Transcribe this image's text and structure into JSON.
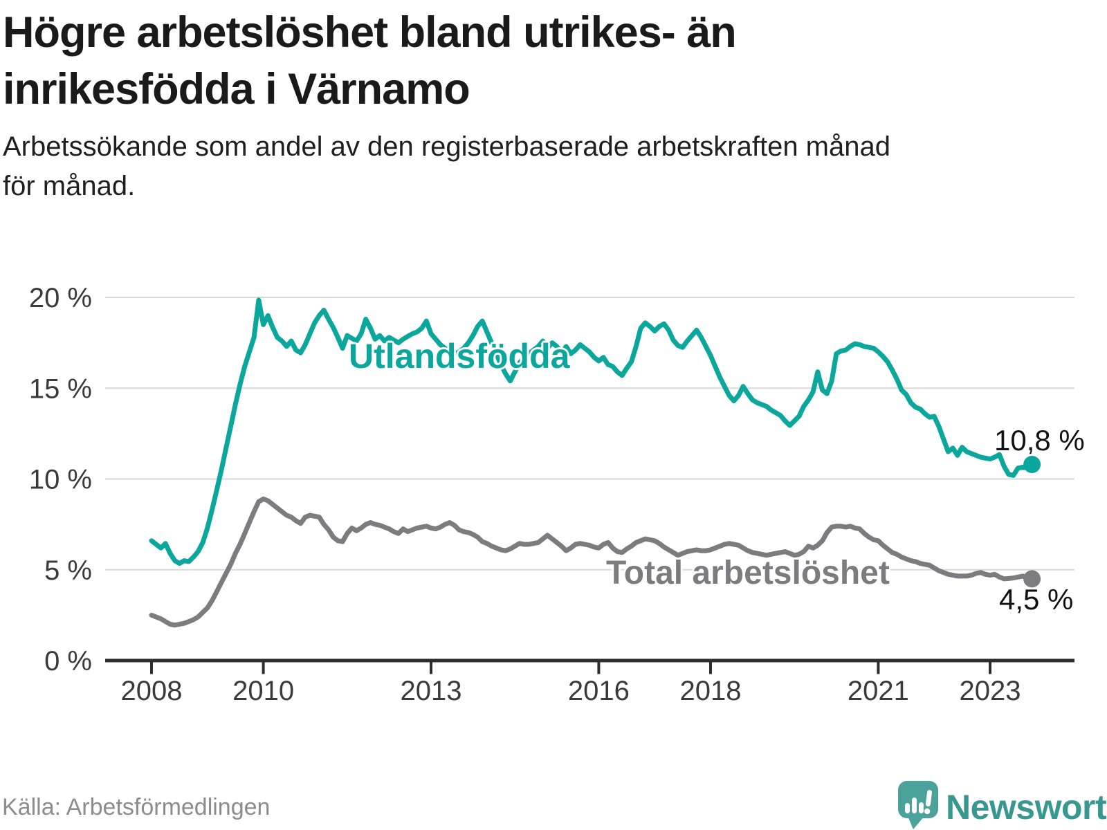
{
  "title": {
    "line1": "Högre arbetslöshet bland utrikes- än",
    "line2": "inrikesfödda i Värnamo"
  },
  "subtitle": {
    "line1": "Arbetssökande som andel av den registerbaserade arbetskraften månad",
    "line2": "för månad."
  },
  "source": "Källa: Arbetsförmedlingen",
  "brand": {
    "name": "Newsworthy",
    "icon": "newsworthy-pin-bar-chart-icon",
    "color": "#38988f",
    "icon_color": "#4aa29b"
  },
  "chart_data": {
    "type": "line",
    "title": "Högre arbetslöshet bland utrikes- än inrikesfödda i Värnamo",
    "subtitle": "Arbetssökande som andel av den registerbaserade arbetskraften månad för månad.",
    "xlabel": "",
    "ylabel": "",
    "ylim": [
      0,
      20
    ],
    "grid": true,
    "legend_position": "inline-labels",
    "x_unit": "month",
    "x_start_year": 2008,
    "x_end": "2023-10",
    "x_axis_ticks": [
      2008,
      2010,
      2013,
      2016,
      2018,
      2021,
      2023
    ],
    "y_axis_ticks": [
      {
        "value": 0,
        "label": "0 %"
      },
      {
        "value": 5,
        "label": "5 %"
      },
      {
        "value": 10,
        "label": "10 %"
      },
      {
        "value": 15,
        "label": "15 %"
      },
      {
        "value": 20,
        "label": "20 %"
      }
    ],
    "style": {
      "grid_color": "#d8d8d8",
      "axis_color": "#2e2e2e",
      "tick_label_color": "#3a3a3a"
    },
    "series": [
      {
        "name": "Total arbetslöshet",
        "color": "#7c7c80",
        "end_value": 4.5,
        "end_label": "4,5 %",
        "values": [
          2.5,
          2.4,
          2.3,
          2.15,
          2.0,
          1.95,
          2.0,
          2.05,
          2.15,
          2.25,
          2.4,
          2.65,
          2.9,
          3.3,
          3.8,
          4.3,
          4.8,
          5.3,
          5.9,
          6.4,
          7.0,
          7.6,
          8.2,
          8.75,
          8.9,
          8.8,
          8.6,
          8.4,
          8.2,
          8.0,
          7.9,
          7.7,
          7.55,
          7.9,
          8.0,
          7.95,
          7.9,
          7.5,
          7.2,
          6.8,
          6.6,
          6.55,
          7.0,
          7.3,
          7.15,
          7.3,
          7.5,
          7.6,
          7.5,
          7.45,
          7.35,
          7.25,
          7.1,
          7.0,
          7.25,
          7.1,
          7.2,
          7.3,
          7.35,
          7.4,
          7.3,
          7.25,
          7.35,
          7.5,
          7.6,
          7.45,
          7.2,
          7.1,
          7.05,
          6.95,
          6.8,
          6.55,
          6.45,
          6.3,
          6.2,
          6.1,
          6.05,
          6.15,
          6.3,
          6.45,
          6.4,
          6.4,
          6.45,
          6.5,
          6.7,
          6.9,
          6.7,
          6.5,
          6.3,
          6.05,
          6.2,
          6.4,
          6.45,
          6.4,
          6.35,
          6.25,
          6.2,
          6.4,
          6.5,
          6.2,
          6.0,
          5.95,
          6.15,
          6.3,
          6.5,
          6.6,
          6.7,
          6.65,
          6.6,
          6.45,
          6.25,
          6.1,
          5.95,
          5.8,
          5.9,
          6.0,
          6.05,
          6.1,
          6.05,
          6.05,
          6.1,
          6.2,
          6.3,
          6.4,
          6.45,
          6.4,
          6.35,
          6.2,
          6.05,
          5.95,
          5.9,
          5.85,
          5.8,
          5.85,
          5.9,
          5.95,
          6.0,
          5.9,
          5.8,
          5.85,
          6.0,
          6.3,
          6.2,
          6.35,
          6.6,
          7.05,
          7.35,
          7.4,
          7.4,
          7.35,
          7.4,
          7.3,
          7.25,
          7.0,
          6.8,
          6.65,
          6.6,
          6.35,
          6.15,
          5.95,
          5.85,
          5.7,
          5.6,
          5.5,
          5.45,
          5.35,
          5.3,
          5.25,
          5.1,
          4.95,
          4.85,
          4.75,
          4.7,
          4.65,
          4.65,
          4.65,
          4.7,
          4.8,
          4.85,
          4.75,
          4.7,
          4.75,
          4.6,
          4.5,
          4.52,
          4.55,
          4.6,
          4.65,
          4.55,
          4.5
        ]
      },
      {
        "name": "Utlandsfödda",
        "color": "#0ca79c",
        "end_value": 10.8,
        "end_label": "10,8 %",
        "values": [
          6.6,
          6.4,
          6.2,
          6.45,
          5.9,
          5.5,
          5.35,
          5.5,
          5.45,
          5.7,
          6.0,
          6.5,
          7.3,
          8.3,
          9.4,
          10.5,
          11.7,
          12.9,
          14.1,
          15.2,
          16.2,
          17.0,
          17.8,
          19.85,
          18.5,
          19.0,
          18.35,
          17.8,
          17.6,
          17.3,
          17.6,
          17.1,
          16.95,
          17.4,
          18.0,
          18.6,
          19.0,
          19.3,
          18.8,
          18.35,
          17.8,
          17.2,
          17.9,
          17.75,
          17.6,
          18.0,
          18.8,
          18.3,
          17.7,
          17.9,
          17.6,
          17.8,
          17.65,
          17.5,
          17.7,
          17.85,
          18.0,
          18.1,
          18.3,
          18.7,
          18.0,
          17.7,
          17.4,
          17.2,
          17.0,
          16.9,
          17.0,
          17.2,
          17.5,
          17.9,
          18.4,
          18.7,
          18.1,
          17.5,
          16.9,
          16.3,
          15.8,
          15.4,
          15.9,
          16.4,
          16.7,
          16.9,
          17.1,
          17.3,
          17.6,
          17.2,
          17.5,
          17.3,
          16.95,
          17.3,
          16.9,
          17.1,
          17.4,
          17.2,
          17.0,
          16.7,
          16.5,
          16.7,
          16.3,
          16.2,
          15.9,
          15.7,
          16.1,
          16.45,
          17.3,
          18.3,
          18.6,
          18.4,
          18.15,
          18.4,
          18.55,
          18.2,
          17.65,
          17.35,
          17.25,
          17.6,
          17.9,
          18.2,
          17.8,
          17.3,
          16.8,
          16.2,
          15.6,
          15.1,
          14.6,
          14.3,
          14.6,
          15.1,
          14.7,
          14.35,
          14.2,
          14.1,
          14.0,
          13.8,
          13.65,
          13.5,
          13.2,
          12.95,
          13.2,
          13.45,
          14.0,
          14.35,
          14.8,
          15.9,
          14.9,
          14.7,
          15.4,
          16.9,
          17.05,
          17.1,
          17.3,
          17.45,
          17.4,
          17.3,
          17.25,
          17.2,
          17.0,
          16.75,
          16.45,
          16.0,
          15.5,
          14.9,
          14.65,
          14.2,
          13.95,
          13.85,
          13.6,
          13.4,
          13.45,
          12.9,
          12.2,
          11.5,
          11.7,
          11.3,
          11.75,
          11.5,
          11.4,
          11.3,
          11.2,
          11.15,
          11.1,
          11.2,
          11.35,
          10.7,
          10.25,
          10.2,
          10.6,
          10.65,
          10.6,
          10.8
        ]
      }
    ]
  }
}
